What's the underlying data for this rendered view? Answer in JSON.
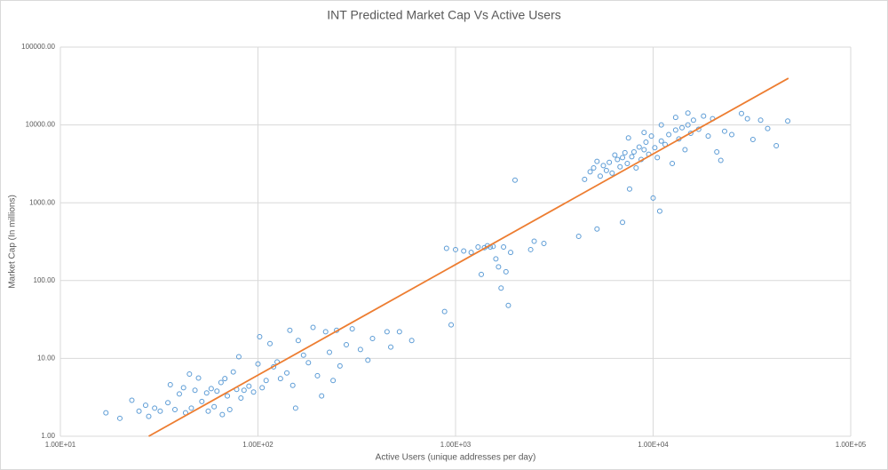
{
  "chart_data": {
    "type": "scatter",
    "title": "INT Predicted Market Cap Vs Active Users",
    "xlabel": "Active Users (unique addresses per day)",
    "ylabel": "Market Cap (In millions)",
    "xscale": "log",
    "yscale": "log",
    "grid": true,
    "color": "#5b9bd5",
    "xlim": [
      10,
      100000
    ],
    "ylim": [
      1,
      100000
    ],
    "xticks": [
      {
        "value": 10,
        "label": "1.00E+01"
      },
      {
        "value": 100,
        "label": "1.00E+02"
      },
      {
        "value": 1000,
        "label": "1.00E+03"
      },
      {
        "value": 10000,
        "label": "1.00E+04"
      },
      {
        "value": 100000,
        "label": "1.00E+05"
      }
    ],
    "yticks": [
      {
        "value": 1,
        "label": "1.00"
      },
      {
        "value": 10,
        "label": "10.00"
      },
      {
        "value": 100,
        "label": "100.00"
      },
      {
        "value": 1000,
        "label": "1000.00"
      },
      {
        "value": 10000,
        "label": "10000.00"
      },
      {
        "value": 100000,
        "label": "100000.00"
      }
    ],
    "x": [
      17,
      20,
      23,
      25,
      27,
      28,
      30,
      32,
      35,
      36,
      38,
      40,
      42,
      43,
      45,
      46,
      48,
      50,
      52,
      55,
      56,
      58,
      60,
      62,
      65,
      66,
      68,
      70,
      72,
      75,
      78,
      80,
      82,
      85,
      90,
      95,
      100,
      102,
      105,
      110,
      115,
      120,
      125,
      130,
      140,
      145,
      150,
      155,
      160,
      170,
      180,
      190,
      200,
      210,
      220,
      230,
      240,
      250,
      260,
      280,
      300,
      330,
      360,
      380,
      450,
      470,
      520,
      600,
      880,
      900,
      950,
      1000,
      1100,
      1200,
      1300,
      1350,
      1400,
      1450,
      1500,
      1550,
      1600,
      1650,
      1700,
      1750,
      1800,
      1850,
      1900,
      2000,
      2400,
      2500,
      2800,
      4200,
      5200,
      7000,
      4500,
      4800,
      5000,
      5200,
      5400,
      5600,
      5800,
      6000,
      6200,
      6400,
      6600,
      6800,
      7000,
      7200,
      7400,
      7600,
      7800,
      8000,
      8200,
      8500,
      8700,
      9000,
      9200,
      9500,
      9800,
      10000,
      10200,
      10500,
      10800,
      11000,
      11500,
      12000,
      12500,
      13000,
      13500,
      14000,
      14500,
      15000,
      15500,
      16000,
      17000,
      18000,
      19000,
      20000,
      21000,
      22000,
      23000,
      25000,
      28000,
      30000,
      32000,
      38000,
      42000,
      48000,
      35000,
      13000,
      15000,
      11000,
      9000,
      7500
    ],
    "values": [
      2,
      1.7,
      2.9,
      2.1,
      2.5,
      1.8,
      2.3,
      2.1,
      2.7,
      4.6,
      2.2,
      3.5,
      4.2,
      2.0,
      6.3,
      2.3,
      3.9,
      5.6,
      2.8,
      3.6,
      2.1,
      4.1,
      2.4,
      3.8,
      4.9,
      1.9,
      5.5,
      3.3,
      2.2,
      6.7,
      4.0,
      10.5,
      3.1,
      3.9,
      4.4,
      3.7,
      8.5,
      19,
      4.2,
      5.2,
      15.5,
      7.8,
      9,
      5.5,
      6.5,
      23,
      4.5,
      2.3,
      17,
      11,
      8.8,
      25,
      6,
      3.3,
      22,
      12,
      5.2,
      23,
      8,
      15,
      24,
      13,
      9.5,
      18,
      22,
      14,
      22,
      17,
      40,
      260,
      27,
      250,
      240,
      230,
      270,
      120,
      265,
      280,
      270,
      275,
      190,
      150,
      80,
      270,
      130,
      48,
      230,
      1950,
      250,
      320,
      300,
      370,
      460,
      560,
      2000,
      2500,
      2800,
      3400,
      2200,
      3000,
      2600,
      3300,
      2400,
      4100,
      3600,
      2900,
      3800,
      4400,
      3200,
      1500,
      3900,
      4500,
      2800,
      5200,
      3600,
      4800,
      6000,
      4200,
      7200,
      1150,
      5100,
      3800,
      780,
      6200,
      5600,
      7500,
      3200,
      8600,
      6600,
      9200,
      4800,
      10000,
      7800,
      11500,
      8800,
      13000,
      7200,
      12000,
      4500,
      3500,
      8300,
      7500,
      14000,
      12000,
      6500,
      9000,
      5400,
      11200,
      11500,
      12500,
      14200,
      10000,
      8000,
      6800
    ],
    "trendline": {
      "x": [
        28,
        48400
      ],
      "values": [
        1,
        39800
      ],
      "color": "#ed7d31"
    }
  }
}
